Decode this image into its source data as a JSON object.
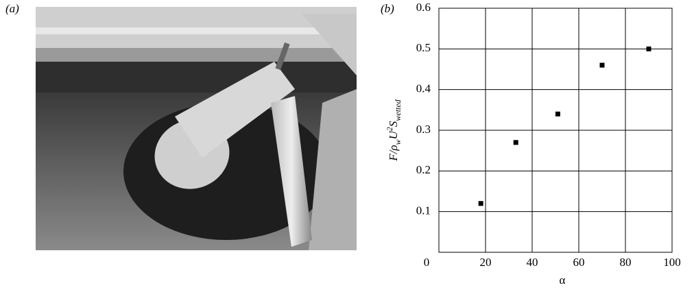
{
  "photo_panel": {
    "label": "(a)"
  },
  "chart_data": {
    "type": "scatter",
    "panel_label": "(b)",
    "xlabel": "α",
    "ylabel": [
      "F/ρ",
      "w",
      "U",
      "2",
      "S",
      "wetted"
    ],
    "x": [
      18,
      33,
      51,
      70,
      90
    ],
    "values": [
      0.12,
      0.27,
      0.34,
      0.46,
      0.5
    ],
    "color": "#000000",
    "xlim": [
      0,
      100
    ],
    "ylim": [
      0,
      0.6
    ],
    "xticks": [
      0,
      20,
      40,
      60,
      80,
      100
    ],
    "yticks": [
      0.1,
      0.2,
      0.3,
      0.4,
      0.5,
      0.6
    ],
    "grid": true
  }
}
